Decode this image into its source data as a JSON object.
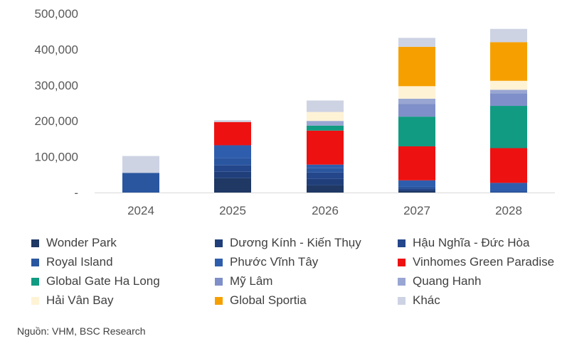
{
  "chart_data": {
    "type": "bar",
    "stacked": true,
    "title": "",
    "categories": [
      "2024",
      "2025",
      "2026",
      "2027",
      "2028"
    ],
    "y_ticks": [
      "-",
      "100,000",
      "200,000",
      "300,000",
      "400,000",
      "500,000"
    ],
    "ylim": [
      0,
      500000
    ],
    "grid": false,
    "legend_position": "bottom",
    "series": [
      {
        "name": "Wonder Park",
        "color": "#1F3864",
        "values": [
          0,
          40000,
          20000,
          4000,
          0
        ]
      },
      {
        "name": "Dương Kính - Kiến Thụy",
        "color": "#203F7A",
        "values": [
          0,
          18000,
          18000,
          3000,
          0
        ]
      },
      {
        "name": "Hậu Nghĩa - Đức Hòa",
        "color": "#24468A",
        "values": [
          0,
          18000,
          18000,
          4000,
          0
        ]
      },
      {
        "name": "Royal Island",
        "color": "#2A56A0",
        "values": [
          55000,
          20000,
          12000,
          5000,
          5000
        ]
      },
      {
        "name": "Phước Vĩnh Tây",
        "color": "#2F5DAD",
        "values": [
          0,
          36000,
          10000,
          18000,
          22000
        ]
      },
      {
        "name": "Vinhomes Green Paradise",
        "color": "#EE1111",
        "values": [
          0,
          65000,
          95000,
          95000,
          97000
        ]
      },
      {
        "name": "Global Gate Ha Long",
        "color": "#119B82",
        "values": [
          0,
          0,
          14000,
          83000,
          118000
        ]
      },
      {
        "name": "Mỹ Lâm",
        "color": "#7F8FC9",
        "values": [
          0,
          0,
          0,
          35000,
          35000
        ]
      },
      {
        "name": "Quang Hanh",
        "color": "#99A6D3",
        "values": [
          0,
          0,
          13000,
          15000,
          10000
        ]
      },
      {
        "name": "Hải Vân Bay",
        "color": "#FFF3D6",
        "values": [
          0,
          0,
          25000,
          35000,
          25000
        ]
      },
      {
        "name": "Global Sportia",
        "color": "#F5A000",
        "values": [
          0,
          0,
          0,
          110000,
          108000
        ]
      },
      {
        "name": "Khác",
        "color": "#CDD3E3",
        "values": [
          47000,
          5000,
          32000,
          25000,
          37000
        ]
      }
    ],
    "source": "Nguồn: VHM, BSC Research"
  }
}
